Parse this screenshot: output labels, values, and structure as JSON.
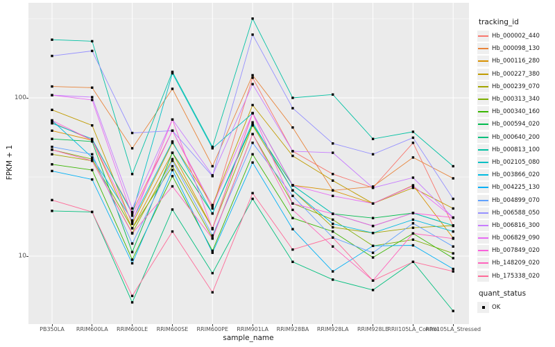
{
  "figure": {
    "y_axis": {
      "label": "FPKM + 1",
      "ticks": [
        {
          "label": "100",
          "value": 100
        },
        {
          "label": "10",
          "value": 10
        }
      ]
    },
    "x_axis": {
      "label": "sample_name"
    },
    "legend": {
      "title": "tracking_id"
    },
    "quant_legend": {
      "title": "quant_status",
      "entries": [
        {
          "label": "OK"
        }
      ]
    },
    "colors": {
      "panel_background": "#EBEBEB",
      "gridline": "#FFFFFF",
      "point": "#000000",
      "tick_text": "#4D4D4D"
    }
  },
  "chart_data": {
    "type": "line",
    "title": "",
    "xlabel": "sample_name",
    "ylabel": "FPKM + 1",
    "yscale": "log10",
    "ybreaks_major": [
      10,
      100
    ],
    "ybreaks_minor": [
      31.62,
      316.2
    ],
    "legend_position": "right",
    "point_shape": "square",
    "x": [
      "PB350LA",
      "RRIM600LA",
      "RRIM600LE",
      "RRIM600SE",
      "RRIM600PE",
      "RRIM901LA",
      "RRIM928BA",
      "RRIM928LA",
      "RRIM928LE",
      "RRII105LA_Control",
      "RRII105LA_Stressed"
    ],
    "series": [
      {
        "name": "Hb_000002_440",
        "color": "#F8766D",
        "values": [
          70,
          54,
          19,
          62,
          20,
          134,
          46,
          33,
          27,
          52,
          15.5
        ]
      },
      {
        "name": "Hb_000098_130",
        "color": "#E8843A",
        "values": [
          118,
          116,
          48,
          114,
          37,
          139,
          65,
          26,
          27.5,
          42,
          31
        ]
      },
      {
        "name": "Hb_000116_280",
        "color": "#D89000",
        "values": [
          62,
          54,
          15,
          45,
          15,
          80,
          28,
          26,
          21.5,
          28,
          13
        ]
      },
      {
        "name": "Hb_000227_380",
        "color": "#C09B00",
        "values": [
          84,
          67,
          16,
          52,
          21,
          90,
          43,
          30,
          21.5,
          27,
          20
        ]
      },
      {
        "name": "Hb_000239_070",
        "color": "#A3A500",
        "values": [
          44,
          40,
          14,
          41,
          15,
          67,
          26,
          15.2,
          14,
          15.1,
          15.6
        ]
      },
      {
        "name": "Hb_000313_340",
        "color": "#7CAE00",
        "values": [
          47,
          41,
          15,
          37,
          13,
          59,
          21.5,
          17,
          11.6,
          12.7,
          10.4
        ]
      },
      {
        "name": "Hb_000340_160",
        "color": "#39B600",
        "values": [
          38,
          35,
          9.5,
          32,
          10.8,
          44,
          17.4,
          14.3,
          9.8,
          13.9,
          9.7
        ]
      },
      {
        "name": "Hb_000594_020",
        "color": "#00BB4E",
        "values": [
          55,
          53,
          10.6,
          45,
          18.6,
          68,
          28,
          18.5,
          17.4,
          18.7,
          15.6
        ]
      },
      {
        "name": "Hb_000640_200",
        "color": "#00BF7D",
        "values": [
          19.3,
          19,
          5.1,
          19.7,
          7.8,
          23,
          9.2,
          7.1,
          6.1,
          9.2,
          4.5
        ]
      },
      {
        "name": "Hb_000813_100",
        "color": "#00C1A3",
        "values": [
          233,
          228,
          33,
          146,
          49,
          317,
          100,
          105,
          55,
          61,
          37
        ]
      },
      {
        "name": "Hb_002105_080",
        "color": "#00BFC4",
        "values": [
          69,
          55,
          18.6,
          143,
          48,
          80,
          28,
          18.5,
          15.5,
          18.7,
          15.6
        ]
      },
      {
        "name": "Hb_003866_020",
        "color": "#00BAE0",
        "values": [
          72,
          42,
          16.8,
          53,
          18.6,
          70,
          26,
          16,
          14,
          17,
          14.3
        ]
      },
      {
        "name": "Hb_004225_130",
        "color": "#00B0F6",
        "values": [
          34.5,
          30.5,
          9,
          35,
          10.5,
          39,
          14.8,
          8,
          11.6,
          11.7,
          8.3
        ]
      },
      {
        "name": "Hb_004899_070",
        "color": "#61A1FF",
        "values": [
          49,
          44,
          12,
          40,
          13.5,
          52,
          24,
          13.1,
          10.5,
          16.1,
          11.5
        ]
      },
      {
        "name": "Hb_006588_050",
        "color": "#9590FF",
        "values": [
          184,
          198,
          60,
          62,
          32,
          251,
          86,
          51.5,
          44,
          56,
          23
        ]
      },
      {
        "name": "Hb_006816_300",
        "color": "#C77CFF",
        "values": [
          104,
          101,
          20,
          73,
          32.4,
          122,
          46,
          45,
          27,
          31.3,
          17.5
        ]
      },
      {
        "name": "Hb_006829_090",
        "color": "#E76BF3",
        "values": [
          104,
          97,
          18,
          62,
          20.7,
          80,
          28,
          24,
          21.5,
          27.8,
          17.5
        ]
      },
      {
        "name": "Hb_007849_020",
        "color": "#FA62DB",
        "values": [
          72,
          54,
          16.4,
          73,
          14.8,
          80,
          21.5,
          18.5,
          15.5,
          18.7,
          17.5
        ]
      },
      {
        "name": "Hb_148209_020",
        "color": "#FF62BC",
        "values": [
          47,
          40,
          13.9,
          27.6,
          12.9,
          59,
          19.6,
          11.5,
          7,
          13.9,
          12.9
        ]
      },
      {
        "name": "Hb_175338_020",
        "color": "#FF6A98",
        "values": [
          22.6,
          19,
          5.6,
          14.3,
          5.9,
          25,
          11,
          13.1,
          7,
          9.2,
          8
        ]
      }
    ]
  }
}
